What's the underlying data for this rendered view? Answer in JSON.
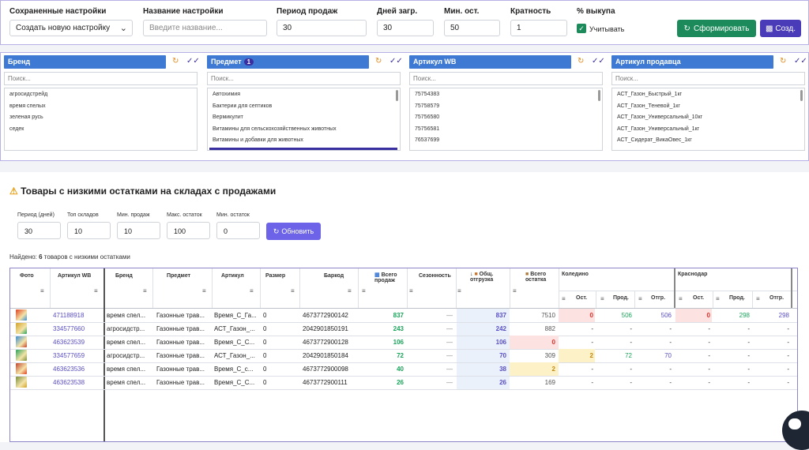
{
  "settings": {
    "saved_label": "Сохраненные настройки",
    "saved_value": "Создать новую настройку",
    "name_label": "Название настройки",
    "name_placeholder": "Введите название...",
    "period_label": "Период продаж",
    "period_value": "30",
    "days_label": "Дней загр.",
    "days_value": "30",
    "min_label": "Мин. ост.",
    "min_value": "50",
    "mult_label": "Кратность",
    "mult_value": "1",
    "buyout_label": "% выкупа",
    "buyout_check_label": "Учитывать",
    "form_button": "Сформировать",
    "create_button": "Созд."
  },
  "filters": [
    {
      "title": "Бренд",
      "badge": "",
      "search_placeholder": "Поиск...",
      "items": [
        "агросидстрейд",
        "время спелых",
        "зеленая русь",
        "седек"
      ]
    },
    {
      "title": "Предмет",
      "badge": "1",
      "search_placeholder": "Поиск...",
      "items": [
        "Автохимия",
        "Бактерии для септиков",
        "Вермикулит",
        "Витамины для сельскохозяйственных животных",
        "Витамины и добавки для животных"
      ]
    },
    {
      "title": "Артикул WB",
      "badge": "",
      "search_placeholder": "Поиск...",
      "items": [
        "75754383",
        "75758579",
        "75756580",
        "75756581",
        "76537699"
      ]
    },
    {
      "title": "Артикул продавца",
      "badge": "",
      "search_placeholder": "Поиск...",
      "items": [
        "АСТ_Газон_Быстрый_1кг",
        "АСТ_Газон_Теневой_1кг",
        "АСТ_Газон_Универсальный_10кг",
        "АСТ_Газон_Универсальный_1кг",
        "АСТ_Сидерат_ВикаОвес_1кг"
      ]
    }
  ],
  "low_stock": {
    "title": "Товары с низкими остатками на складах с продажами",
    "params": [
      {
        "label": "Период (дней)",
        "value": "30"
      },
      {
        "label": "Топ складов",
        "value": "10"
      },
      {
        "label": "Мин. продаж",
        "value": "10"
      },
      {
        "label": "Макс. остаток",
        "value": "100"
      },
      {
        "label": "Мин. остаток",
        "value": "0"
      }
    ],
    "update_button": "Обновить",
    "found_prefix": "Найдено: ",
    "found_count": "6",
    "found_suffix": " товаров с низкими остатками"
  },
  "table": {
    "headers": {
      "photo": "Фото",
      "article_wb": "Артикул WB",
      "brand": "Бренд",
      "subject": "Предмет",
      "article": "Артикул",
      "size": "Размер",
      "barcode": "Баркод",
      "total_sales_1": "Всего",
      "total_sales_2": "продаж",
      "seasonality": "Сезонность",
      "shipment_1": "Общ.",
      "shipment_2": "отгрузка",
      "stock_1": "Всего",
      "stock_2": "остатка",
      "wh1": "Коледино",
      "wh2": "Краснодар",
      "ost": "Ост.",
      "prod": "Прод.",
      "otgr": "Отгр."
    },
    "rows": [
      {
        "art": "471188918",
        "brand": "время спел...",
        "subject": "Газонные трав...",
        "article": "Время_С_Га...",
        "size": "0",
        "barcode": "4673772900142",
        "sales": "837",
        "season": "—",
        "ship": "837",
        "stock": "7510",
        "k_ost": "0",
        "k_prod": "506",
        "k_otgr": "506",
        "r_ost": "0",
        "r_prod": "298",
        "r_otgr": "298"
      },
      {
        "art": "334577660",
        "brand": "агросидстр...",
        "subject": "Газонные трав...",
        "article": "АСТ_Газон_...",
        "size": "0",
        "barcode": "2042901850191",
        "sales": "243",
        "season": "—",
        "ship": "242",
        "stock": "882",
        "k_ost": "-",
        "k_prod": "-",
        "k_otgr": "-",
        "r_ost": "-",
        "r_prod": "-",
        "r_otgr": "-"
      },
      {
        "art": "463623539",
        "brand": "время спел...",
        "subject": "Газонные трав...",
        "article": "Время_С_С...",
        "size": "0",
        "barcode": "4673772900128",
        "sales": "106",
        "season": "—",
        "ship": "106",
        "stock": "0",
        "k_ost": "-",
        "k_prod": "-",
        "k_otgr": "-",
        "r_ost": "-",
        "r_prod": "-",
        "r_otgr": "-"
      },
      {
        "art": "334577659",
        "brand": "агросидстр...",
        "subject": "Газонные трав...",
        "article": "АСТ_Газон_...",
        "size": "0",
        "barcode": "2042901850184",
        "sales": "72",
        "season": "—",
        "ship": "70",
        "stock": "309",
        "k_ost": "2",
        "k_prod": "72",
        "k_otgr": "70",
        "r_ost": "-",
        "r_prod": "-",
        "r_otgr": "-"
      },
      {
        "art": "463623536",
        "brand": "время спел...",
        "subject": "Газонные трав...",
        "article": "Время_С_с...",
        "size": "0",
        "barcode": "4673772900098",
        "sales": "40",
        "season": "—",
        "ship": "38",
        "stock": "2",
        "k_ost": "-",
        "k_prod": "-",
        "k_otgr": "-",
        "r_ost": "-",
        "r_prod": "-",
        "r_otgr": "-"
      },
      {
        "art": "463623538",
        "brand": "время спел...",
        "subject": "Газонные трав...",
        "article": "Время_С_С...",
        "size": "0",
        "barcode": "4673772900111",
        "sales": "26",
        "season": "—",
        "ship": "26",
        "stock": "169",
        "k_ost": "-",
        "k_prod": "-",
        "k_otgr": "-",
        "r_ost": "-",
        "r_prod": "-",
        "r_otgr": "-"
      }
    ]
  },
  "icons": {
    "refresh": "refresh-icon",
    "check_all": "check-all-icon",
    "warning": "warning-icon",
    "filter": "filter-icon",
    "chat": "chat-icon"
  },
  "colors": {
    "primary_green": "#1c8a5a",
    "primary_purple": "#4a3bb8",
    "header_blue": "#3e7ad3",
    "link": "#5a4fc4",
    "sales_green": "#1aa45a",
    "stock_red_bg": "#fde2e2",
    "stock_yellow_bg": "#fdf1c8"
  }
}
